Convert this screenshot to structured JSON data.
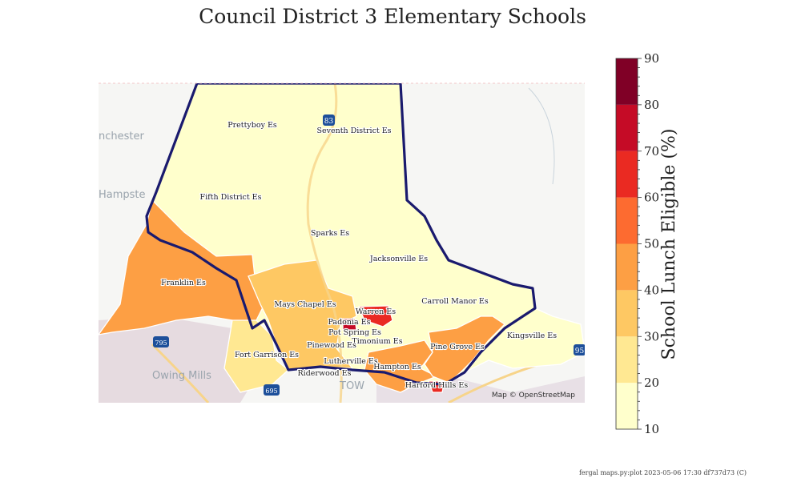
{
  "title": "Council District 3 Elementary Schools",
  "attribution": "Map © OpenStreetMap",
  "footer": "fergal maps.py:plot 2023-05-06 17:30 df737d73 (C)",
  "basemap_places": [
    "nchester",
    "Hampste",
    "Owing Mills",
    "Tow"
  ],
  "highway_shields": [
    "83",
    "795",
    "695",
    "95"
  ],
  "colorbar": {
    "label": "School Lunch Eligible (%)",
    "min": 10,
    "max": 90,
    "ticks": [
      "10",
      "20",
      "30",
      "40",
      "50",
      "60",
      "70",
      "80",
      "90"
    ],
    "bins": [
      {
        "range": "10-20",
        "color": "#ffffcc"
      },
      {
        "range": "20-30",
        "color": "#ffe892"
      },
      {
        "range": "30-40",
        "color": "#fec863"
      },
      {
        "range": "40-50",
        "color": "#fd9f44"
      },
      {
        "range": "50-60",
        "color": "#fd6b30"
      },
      {
        "range": "60-70",
        "color": "#ea2a22"
      },
      {
        "range": "70-80",
        "color": "#c50b26"
      },
      {
        "range": "80-90",
        "color": "#800026"
      }
    ]
  },
  "district_boundary_color": "#1a1a6e",
  "schools": [
    {
      "name": "Prettyboy Es",
      "bin": "10-20"
    },
    {
      "name": "Seventh District Es",
      "bin": "10-20"
    },
    {
      "name": "Fifth District Es",
      "bin": "10-20"
    },
    {
      "name": "Sparks Es",
      "bin": "10-20"
    },
    {
      "name": "Jacksonville Es",
      "bin": "10-20"
    },
    {
      "name": "Franklin Es",
      "bin": "40-50"
    },
    {
      "name": "Mays Chapel Es",
      "bin": "30-40"
    },
    {
      "name": "Carroll Manor Es",
      "bin": "10-20"
    },
    {
      "name": "Warren Es",
      "bin": "60-70"
    },
    {
      "name": "Padonia Es",
      "bin": "70-80"
    },
    {
      "name": "Pot Spring Es",
      "bin": "30-40"
    },
    {
      "name": "Timonium Es",
      "bin": "30-40"
    },
    {
      "name": "Pinewood Es",
      "bin": "30-40"
    },
    {
      "name": "Fort Garrison Es",
      "bin": "20-30"
    },
    {
      "name": "Lutherville Es",
      "bin": "30-40"
    },
    {
      "name": "Hampton Es",
      "bin": "40-50"
    },
    {
      "name": "Riderwood Es",
      "bin": "10-20"
    },
    {
      "name": "Harford Hills Es",
      "bin": "40-50"
    },
    {
      "name": "Pine Grove Es",
      "bin": "40-50"
    },
    {
      "name": "Kingsville Es",
      "bin": "10-20"
    }
  ]
}
